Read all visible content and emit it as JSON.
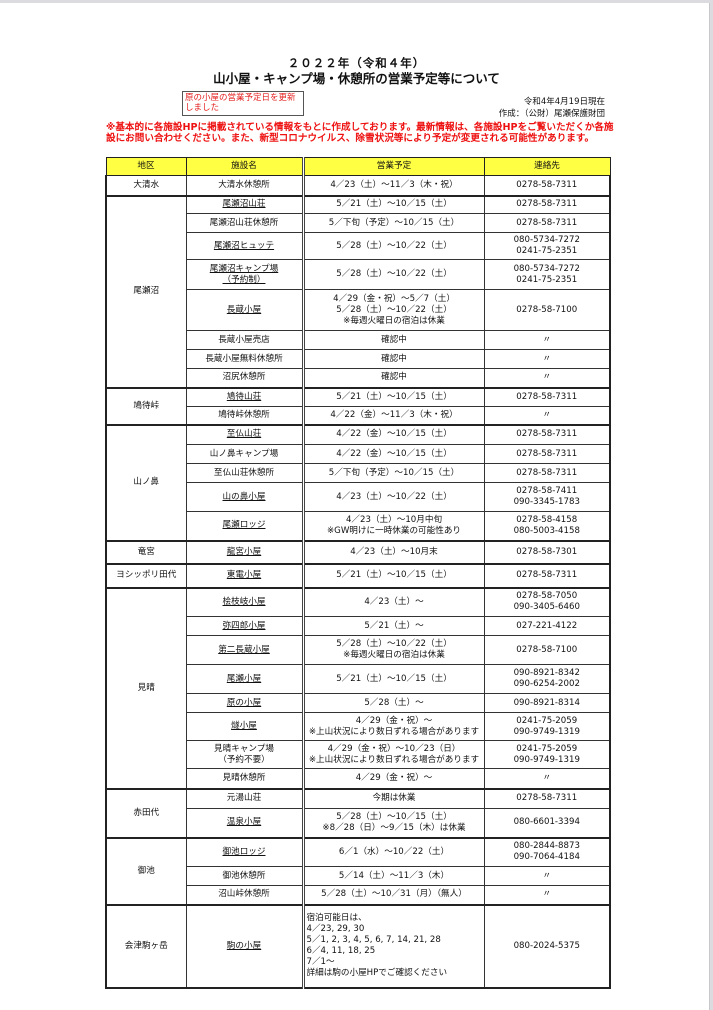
{
  "header": {
    "year": "２０２２年（令和４年）",
    "title": "山小屋・キャンプ場・休憩所の営業予定等について",
    "notice": "原の小屋の営業予定日を更新しました",
    "date": "令和4年4月19日現在",
    "author": "作成：（公財）尾瀬保護財団",
    "warning": "※基本的に各施設HPに掲載されている情報をもとに作成しております。最新情報は、各施設HPをご覧いただくか各施設にお問い合わせください。また、新型コロナウイルス、除雪状況等により予定が変更される可能性があります。"
  },
  "colors": {
    "header_bg": "#ffff44",
    "warning": "#ee1111"
  },
  "table": {
    "columns": [
      "地区",
      "施設名",
      "営業予定",
      "連絡先"
    ],
    "groups": [
      {
        "region": "大清水",
        "rows": [
          {
            "name": [
              "大清水休憩所"
            ],
            "link": false,
            "schedule": [
              "4／23（土）～11／3（木・祝）"
            ],
            "contact": [
              "0278-58-7311"
            ]
          }
        ]
      },
      {
        "region": "尾瀬沼",
        "rows": [
          {
            "name": [
              "尾瀬沼山荘"
            ],
            "link": true,
            "schedule": [
              "5／21（土）～10／15（土）"
            ],
            "contact": [
              "0278-58-7311"
            ]
          },
          {
            "name": [
              "尾瀬沼山荘休憩所"
            ],
            "link": false,
            "schedule": [
              "5／下旬（予定）～10／15（土）"
            ],
            "contact": [
              "0278-58-7311"
            ]
          },
          {
            "name": [
              "尾瀬沼ヒュッテ"
            ],
            "link": true,
            "schedule": [
              "5／28（土）～10／22（土）"
            ],
            "contact": [
              "080-5734-7272",
              "0241-75-2351"
            ]
          },
          {
            "name": [
              "尾瀬沼キャンプ場",
              "（予約制）"
            ],
            "link": true,
            "schedule": [
              "5／28（土）～10／22（土）"
            ],
            "contact": [
              "080-5734-7272",
              "0241-75-2351"
            ]
          },
          {
            "name": [
              "長蔵小屋"
            ],
            "link": true,
            "schedule": [
              "4／29（金・祝）～5／7（土）",
              "5／28（土）～10／22（土）",
              "※毎週火曜日の宿泊は休業"
            ],
            "contact": [
              "0278-58-7100"
            ]
          },
          {
            "name": [
              "長蔵小屋売店"
            ],
            "link": false,
            "schedule": [
              "確認中"
            ],
            "contact": [
              "〃"
            ]
          },
          {
            "name": [
              "長蔵小屋無料休憩所"
            ],
            "link": false,
            "schedule": [
              "確認中"
            ],
            "contact": [
              "〃"
            ]
          },
          {
            "name": [
              "沼尻休憩所"
            ],
            "link": false,
            "schedule": [
              "確認中"
            ],
            "contact": [
              "〃"
            ]
          }
        ]
      },
      {
        "region": "鳩待峠",
        "rows": [
          {
            "name": [
              "鳩待山荘"
            ],
            "link": true,
            "schedule": [
              "5／21（土）～10／15（土）"
            ],
            "contact": [
              "0278-58-7311"
            ]
          },
          {
            "name": [
              "鳩待峠休憩所"
            ],
            "link": false,
            "schedule": [
              "4／22（金）～11／3（木・祝）"
            ],
            "contact": [
              "〃"
            ]
          }
        ]
      },
      {
        "region": "山ノ鼻",
        "rows": [
          {
            "name": [
              "至仏山荘"
            ],
            "link": true,
            "schedule": [
              "4／22（金）～10／15（土）"
            ],
            "contact": [
              "0278-58-7311"
            ]
          },
          {
            "name": [
              "山ノ鼻キャンプ場"
            ],
            "link": false,
            "schedule": [
              "4／22（金）～10／15（土）"
            ],
            "contact": [
              "0278-58-7311"
            ]
          },
          {
            "name": [
              "至仏山荘休憩所"
            ],
            "link": false,
            "schedule": [
              "5／下旬（予定）～10／15（土）"
            ],
            "contact": [
              "0278-58-7311"
            ]
          },
          {
            "name": [
              "山の鼻小屋"
            ],
            "link": true,
            "schedule": [
              "4／23（土）～10／22（土）"
            ],
            "contact": [
              "0278-58-7411",
              "090-3345-1783"
            ]
          },
          {
            "name": [
              "尾瀬ロッジ"
            ],
            "link": true,
            "schedule": [
              "4／23（土）～10月中旬",
              "※GW明けに一時休業の可能性あり"
            ],
            "contact": [
              "0278-58-4158",
              "080-5003-4158"
            ]
          }
        ]
      },
      {
        "region": "竜宮",
        "rows": [
          {
            "name": [
              "龍宮小屋"
            ],
            "link": true,
            "schedule": [
              "4／23（土）～10月末"
            ],
            "contact": [
              "0278-58-7301"
            ]
          }
        ]
      },
      {
        "region": "ヨシッポリ田代",
        "rows": [
          {
            "name": [
              "東電小屋"
            ],
            "link": true,
            "schedule": [
              "5／21（土）～10／15（土）"
            ],
            "contact": [
              "0278-58-7311"
            ]
          }
        ]
      },
      {
        "region": "見晴",
        "rows": [
          {
            "name": [
              "桧枝岐小屋"
            ],
            "link": true,
            "schedule": [
              "4／23（土）～"
            ],
            "contact": [
              "0278-58-7050",
              "090-3405-6460"
            ]
          },
          {
            "name": [
              "弥四郎小屋"
            ],
            "link": true,
            "schedule": [
              "5／21（土）～"
            ],
            "contact": [
              "027-221-4122"
            ]
          },
          {
            "name": [
              "第二長蔵小屋"
            ],
            "link": true,
            "schedule": [
              "5／28（土）～10／22（土）",
              "※毎週火曜日の宿泊は休業"
            ],
            "contact": [
              "0278-58-7100"
            ]
          },
          {
            "name": [
              "尾瀬小屋"
            ],
            "link": true,
            "schedule": [
              "5／21（土）～10／15（土）"
            ],
            "contact": [
              "090-8921-8342",
              "090-6254-2002"
            ]
          },
          {
            "name": [
              "原の小屋"
            ],
            "link": true,
            "schedule": [
              "5／28（土）～"
            ],
            "contact": [
              "090-8921-8314"
            ]
          },
          {
            "name": [
              "燧小屋"
            ],
            "link": true,
            "schedule": [
              "4／29（金・祝）～",
              "※上山状況により数日ずれる場合があります"
            ],
            "contact": [
              "0241-75-2059",
              "090-9749-1319"
            ]
          },
          {
            "name": [
              "見晴キャンプ場",
              "（予約不要）"
            ],
            "link": false,
            "schedule": [
              "4／29（金・祝）～10／23（日）",
              "※上山状況により数日ずれる場合があります"
            ],
            "contact": [
              "0241-75-2059",
              "090-9749-1319"
            ]
          },
          {
            "name": [
              "見晴休憩所"
            ],
            "link": false,
            "schedule": [
              "4／29（金・祝）～"
            ],
            "contact": [
              "〃"
            ]
          }
        ]
      },
      {
        "region": "赤田代",
        "rows": [
          {
            "name": [
              "元湯山荘"
            ],
            "link": false,
            "schedule": [
              "今期は休業"
            ],
            "contact": [
              "0278-58-7311"
            ]
          },
          {
            "name": [
              "温泉小屋"
            ],
            "link": true,
            "schedule": [
              "5／28（土）～10／15（土）",
              "※8／28（日）～9／15（木）は休業"
            ],
            "contact": [
              "080-6601-3394"
            ]
          }
        ]
      },
      {
        "region": "御池",
        "rows": [
          {
            "name": [
              "御池ロッジ"
            ],
            "link": true,
            "schedule": [
              "6／1（水）～10／22（土）"
            ],
            "contact": [
              "080-2844-8873",
              "090-7064-4184"
            ]
          },
          {
            "name": [
              "御池休憩所"
            ],
            "link": false,
            "schedule": [
              "5／14（土）～11／3（木）"
            ],
            "contact": [
              "〃"
            ]
          },
          {
            "name": [
              "沼山峠休憩所"
            ],
            "link": false,
            "schedule": [
              "5／28（土）～10／31（月）（無人）"
            ],
            "contact": [
              "〃"
            ]
          }
        ]
      },
      {
        "region": "会津駒ヶ岳",
        "rows": [
          {
            "name": [
              "駒の小屋"
            ],
            "link": true,
            "schedule_left": true,
            "schedule": [
              "宿泊可能日は、",
              "4／23, 29, 30",
              "5／1, 2, 3, 4, 5, 6, 7, 14, 21, 28",
              "6／4, 11, 18, 25",
              "7／1～",
              "詳細は駒の小屋HPでご確認ください"
            ],
            "contact": [
              "080-2024-5375"
            ]
          }
        ]
      }
    ]
  }
}
